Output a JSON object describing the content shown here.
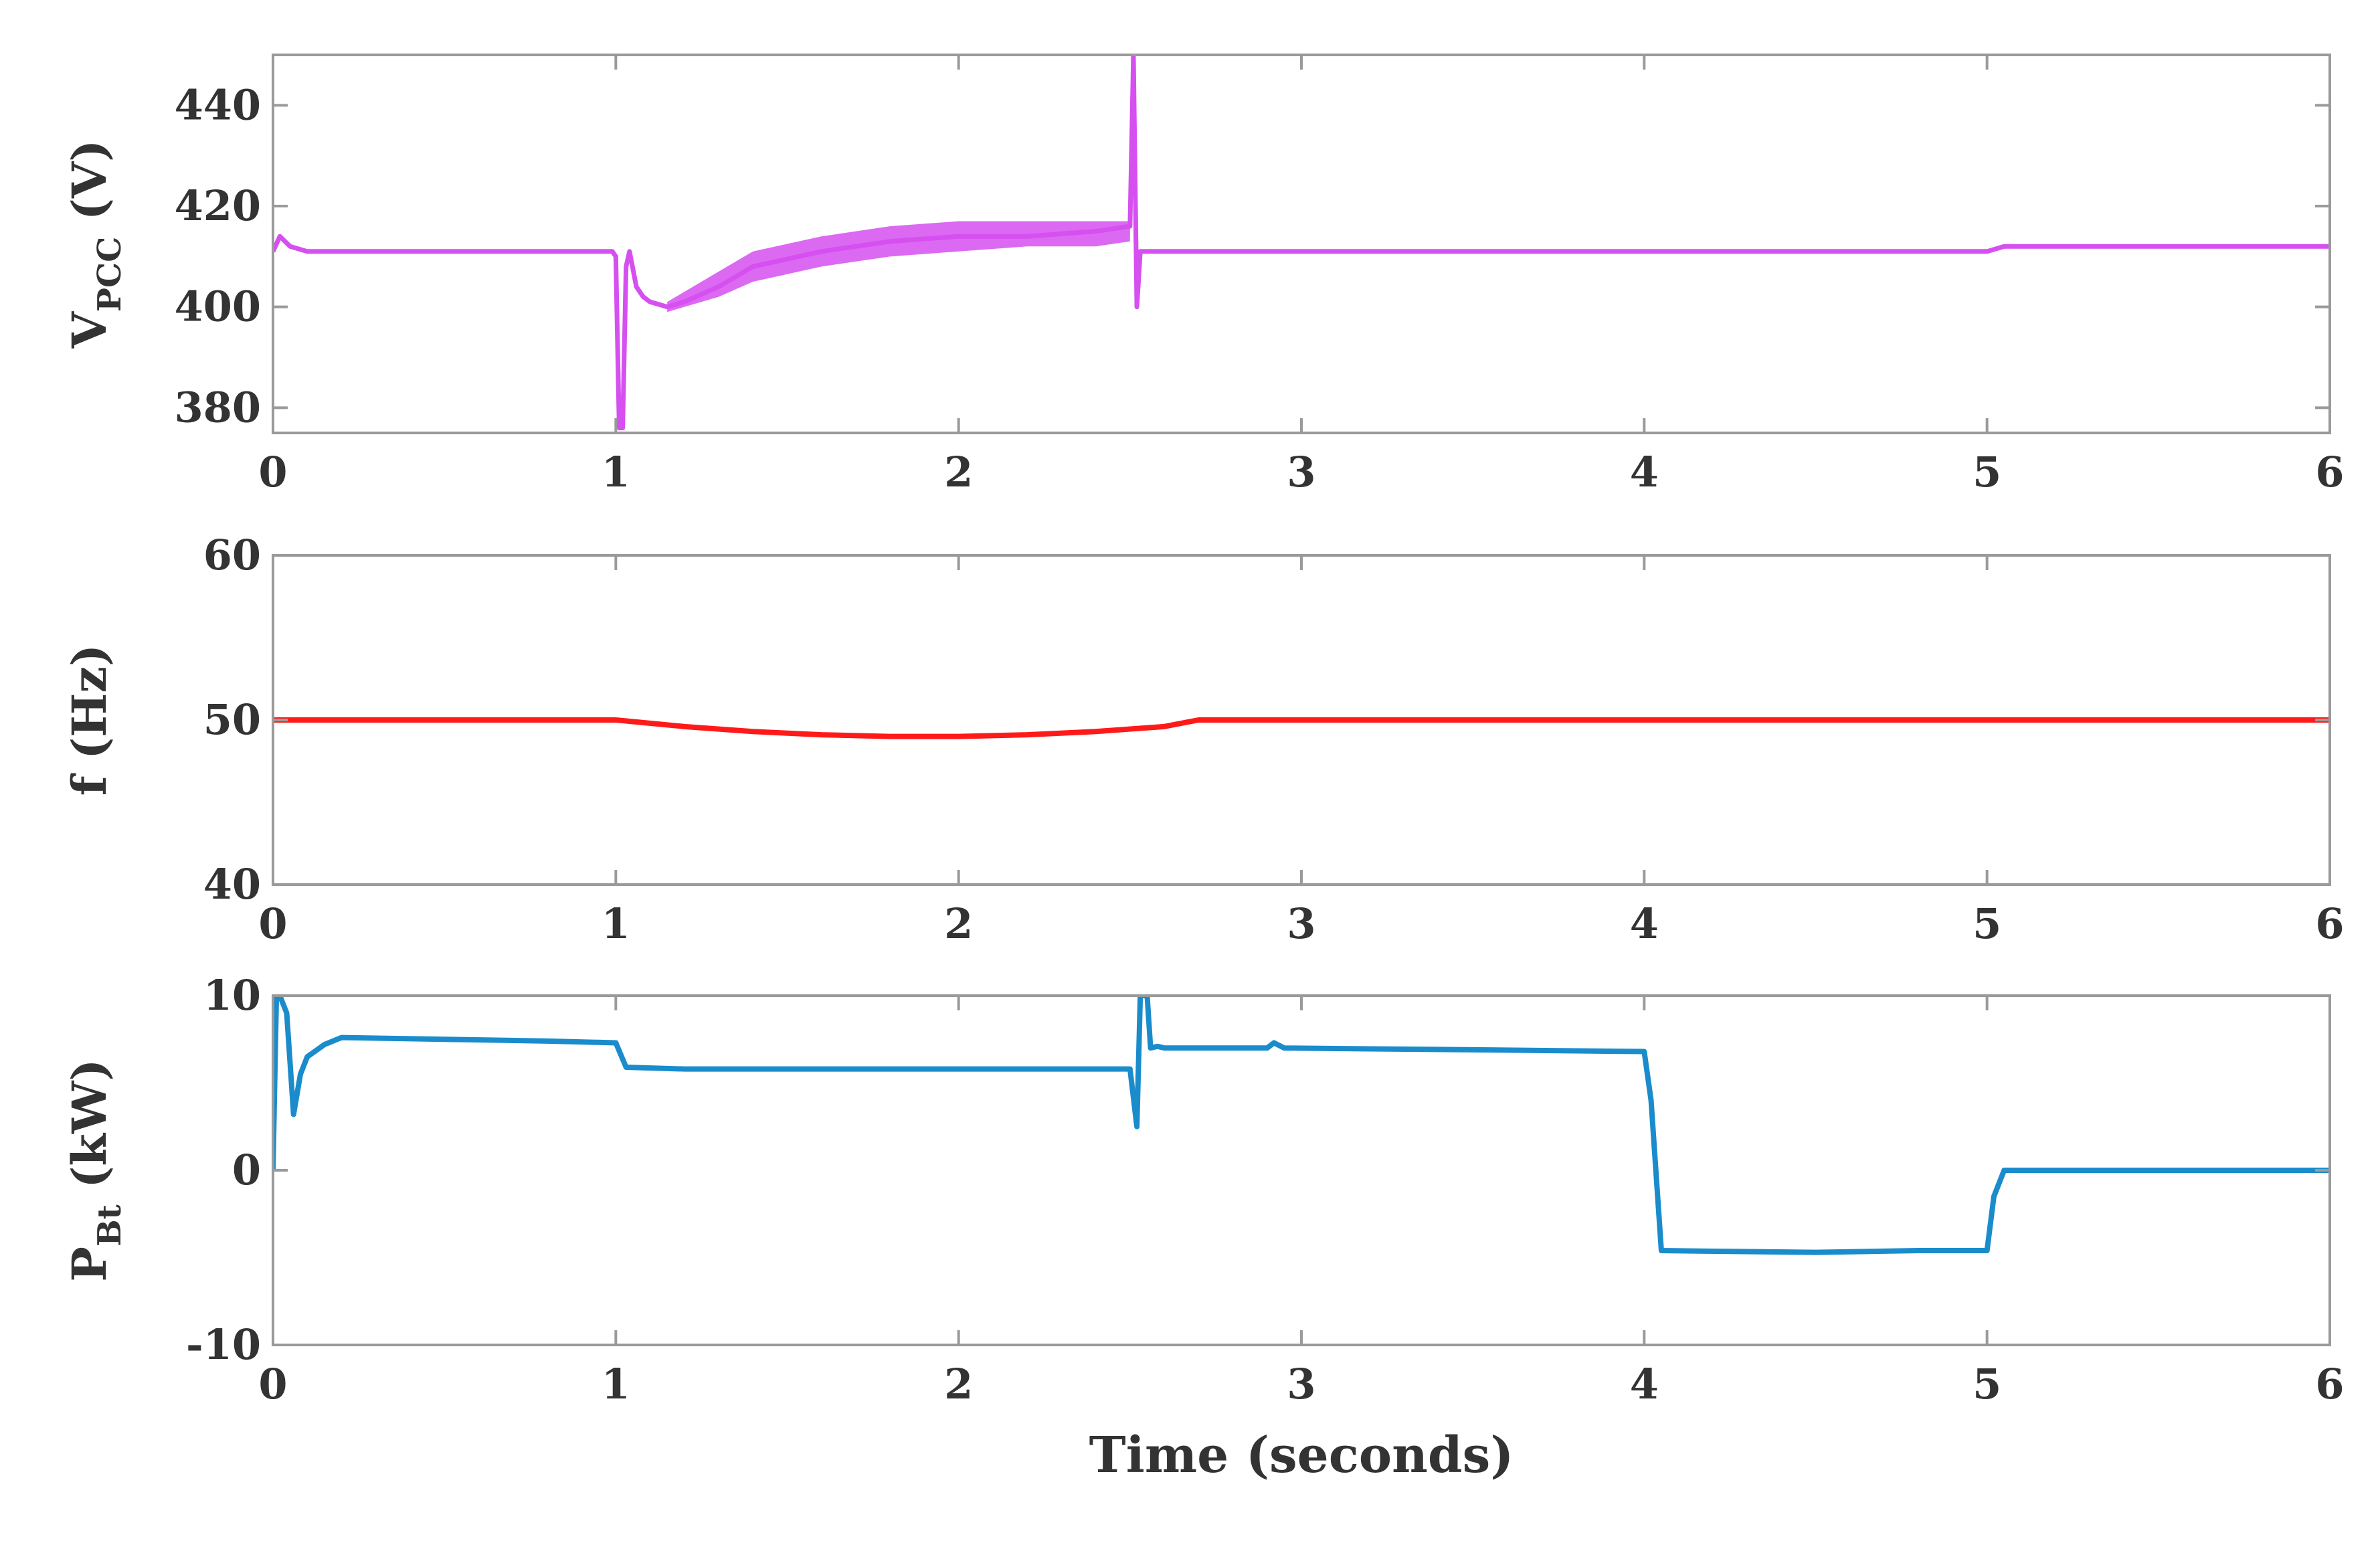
{
  "chart_data": [
    {
      "type": "line",
      "ylabel": {
        "main": "V",
        "sub": "PCC",
        "unit": " (V)"
      },
      "xlabel": "",
      "xlim": [
        0,
        6
      ],
      "ylim": [
        375,
        450
      ],
      "xticks": [
        0,
        1,
        2,
        3,
        4,
        5,
        6
      ],
      "yticks": [
        380,
        400,
        420,
        440
      ],
      "grid": false,
      "colors": {
        "line": "#d64ff0"
      },
      "series": [
        {
          "x": [
            0,
            0.02,
            0.05,
            0.1,
            0.99,
            1.0,
            1.01,
            1.02,
            1.03,
            1.04,
            1.06,
            1.08,
            1.1,
            1.15,
            1.2,
            1.3,
            1.4,
            1.6,
            1.8,
            2.0,
            2.2,
            2.4,
            2.5,
            2.51,
            2.52,
            2.53,
            2.54,
            2.56,
            3.0,
            4.0,
            5.0,
            5.05,
            6.0
          ],
          "y": [
            411,
            414,
            412,
            411,
            411,
            410,
            376,
            376,
            408,
            411,
            404,
            402,
            401,
            400,
            401,
            404,
            408,
            411,
            413,
            414,
            414,
            415,
            416,
            450,
            400,
            411,
            411,
            411,
            411,
            411,
            411,
            412,
            412
          ]
        }
      ],
      "band": {
        "x": [
          1.15,
          1.2,
          1.3,
          1.4,
          1.6,
          1.8,
          2.0,
          2.2,
          2.4,
          2.5
        ],
        "low": [
          399,
          400,
          402,
          405,
          408,
          410,
          411,
          412,
          412,
          413
        ],
        "high": [
          401,
          403,
          407,
          411,
          414,
          416,
          417,
          417,
          417,
          417
        ]
      }
    },
    {
      "type": "line",
      "ylabel": {
        "main": "f (Hz)",
        "sub": "",
        "unit": ""
      },
      "xlabel": "",
      "xlim": [
        0,
        6
      ],
      "ylim": [
        40,
        60
      ],
      "xticks": [
        0,
        1,
        2,
        3,
        4,
        5,
        6
      ],
      "yticks": [
        40,
        50,
        60
      ],
      "grid": false,
      "colors": {
        "line": "#ff1a1a"
      },
      "series": [
        {
          "x": [
            0,
            1.0,
            1.2,
            1.4,
            1.6,
            1.8,
            2.0,
            2.2,
            2.4,
            2.6,
            2.7,
            3.0,
            4.0,
            5.0,
            6.0
          ],
          "y": [
            50.0,
            50.0,
            49.6,
            49.3,
            49.1,
            49.0,
            49.0,
            49.1,
            49.3,
            49.6,
            50.0,
            50.0,
            50.0,
            50.0,
            50.0
          ]
        }
      ]
    },
    {
      "type": "line",
      "ylabel": {
        "main": "P",
        "sub": "Bt",
        "unit": " (kW)"
      },
      "xlabel": "Time (seconds)",
      "xlim": [
        0,
        6
      ],
      "ylim": [
        -10,
        10
      ],
      "xticks": [
        0,
        1,
        2,
        3,
        4,
        5,
        6
      ],
      "yticks": [
        -10,
        0,
        10
      ],
      "grid": false,
      "colors": {
        "line": "#1a8ccc"
      },
      "series": [
        {
          "x": [
            0,
            0.01,
            0.02,
            0.04,
            0.06,
            0.08,
            0.1,
            0.15,
            0.2,
            0.5,
            0.8,
            1.0,
            1.03,
            1.2,
            1.5,
            2.0,
            2.5,
            2.52,
            2.53,
            2.55,
            2.56,
            2.58,
            2.6,
            2.9,
            2.92,
            2.95,
            3.5,
            4.0,
            4.02,
            4.05,
            4.5,
            4.8,
            5.0,
            5.02,
            5.05,
            6.0
          ],
          "y": [
            0,
            10,
            10,
            9,
            3.2,
            5.5,
            6.5,
            7.2,
            7.6,
            7.5,
            7.4,
            7.3,
            5.9,
            5.8,
            5.8,
            5.8,
            5.8,
            2.5,
            10,
            10,
            7.0,
            7.1,
            7.0,
            7.0,
            7.3,
            7.0,
            6.9,
            6.8,
            4.0,
            -4.6,
            -4.7,
            -4.6,
            -4.6,
            -1.5,
            0,
            0
          ]
        }
      ]
    }
  ]
}
